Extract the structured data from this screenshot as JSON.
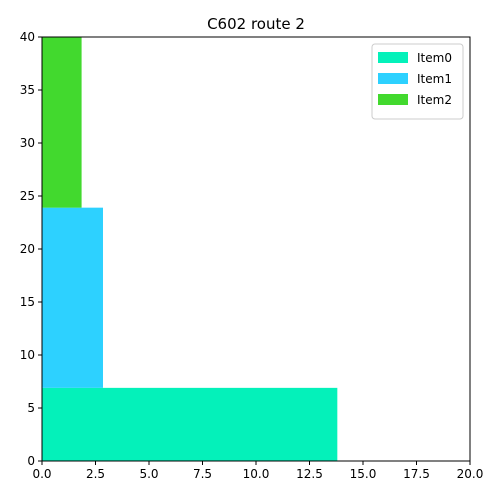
{
  "chart_data": {
    "type": "bar",
    "title": "C602 route 2",
    "xlabel": "",
    "ylabel": "",
    "xlim": [
      0,
      20
    ],
    "ylim": [
      0,
      40
    ],
    "xticks": [
      "0.0",
      "2.5",
      "5.0",
      "7.5",
      "10.0",
      "12.5",
      "15.0",
      "17.5",
      "20.0"
    ],
    "yticks": [
      "0",
      "5",
      "10",
      "15",
      "20",
      "25",
      "30",
      "35",
      "40"
    ],
    "grid": false,
    "legend_position": "top-right",
    "series": [
      {
        "name": "Item0",
        "color": "#04f1ba",
        "x0": 0,
        "x1": 13.8,
        "y0": 0,
        "y1": 6.9
      },
      {
        "name": "Item1",
        "color": "#2dd1ff",
        "x0": 0,
        "x1": 2.85,
        "y0": 6.9,
        "y1": 23.9
      },
      {
        "name": "Item2",
        "color": "#42d92e",
        "x0": 0,
        "x1": 1.85,
        "y0": 23.9,
        "y1": 40
      }
    ]
  }
}
